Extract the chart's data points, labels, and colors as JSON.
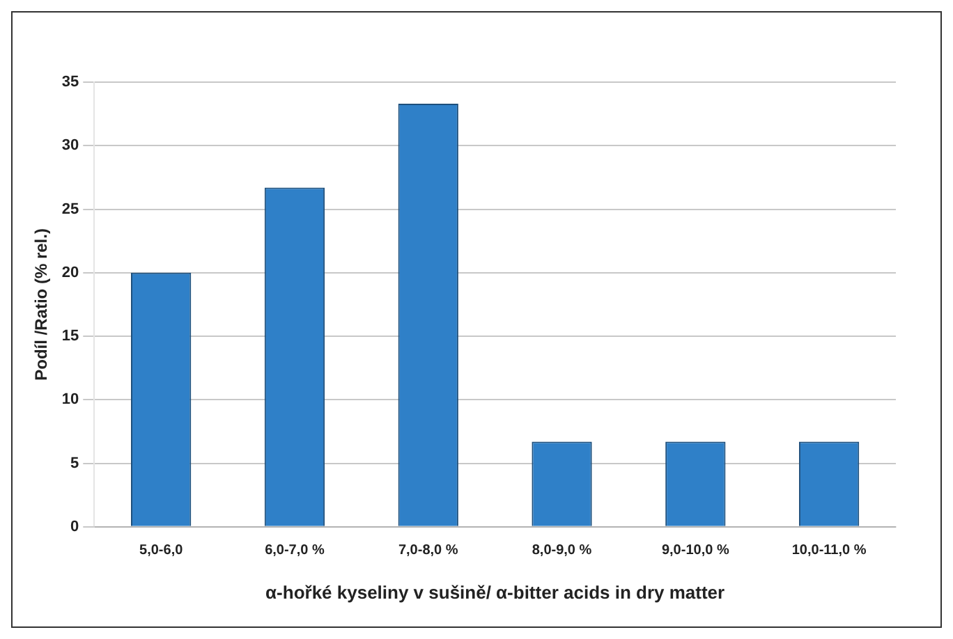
{
  "chart_data": {
    "type": "bar",
    "xlabel": "α-hořké kyseliny v sušině/ α-bitter acids in dry matter",
    "ylabel": "Podíl /Ratio (% rel.)",
    "categories": [
      "5,0-6,0",
      "6,0-7,0 %",
      "7,0-8,0 %",
      "8,0-9,0 %",
      "9,0-10,0 %",
      "10,0-11,0 %"
    ],
    "values": [
      20,
      26.7,
      33.3,
      6.7,
      6.7,
      6.7
    ],
    "color": "#2f80c8",
    "ylim": [
      0,
      35
    ],
    "yticks": [
      0,
      5,
      10,
      15,
      20,
      25,
      30,
      35
    ],
    "grid": "y",
    "legend": false
  }
}
